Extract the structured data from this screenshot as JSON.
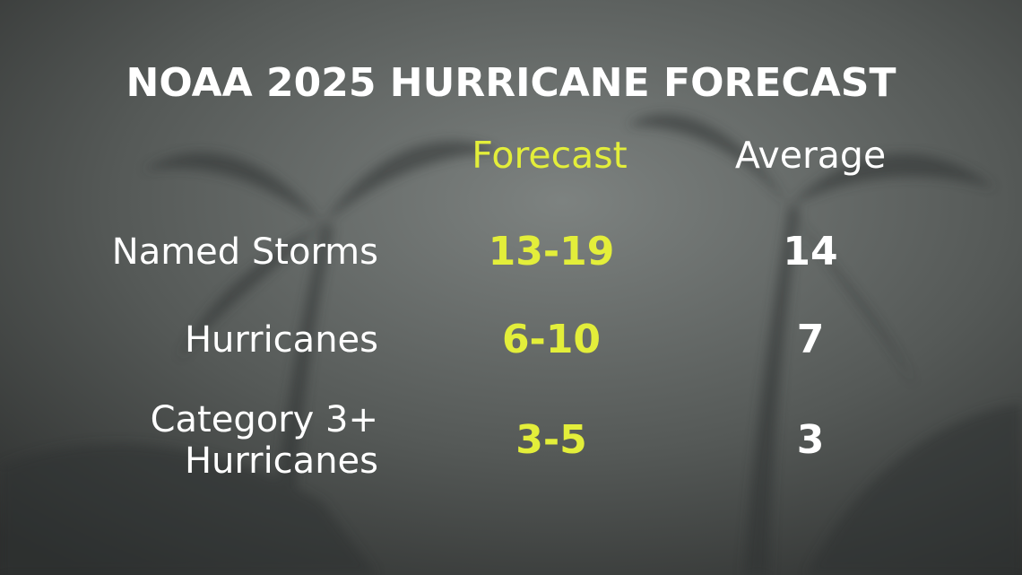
{
  "title": "NOAA 2025 HURRICANE FORECAST",
  "table": {
    "columns": [
      "Forecast",
      "Average"
    ],
    "rows": [
      {
        "label": [
          "Named Storms"
        ],
        "forecast": "13-19",
        "average": 14
      },
      {
        "label": [
          "Hurricanes"
        ],
        "forecast": "6-10",
        "average": 7
      },
      {
        "label": [
          "Category 3+",
          "Hurricanes"
        ],
        "forecast": "3-5",
        "average": 3
      }
    ]
  }
}
